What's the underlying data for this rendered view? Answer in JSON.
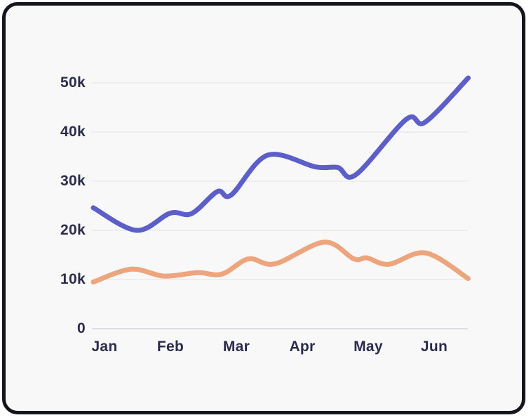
{
  "colors": {
    "card_background": "#f8f8f8",
    "card_border": "#15151d",
    "grid_line": "#e9e9ec",
    "axis_line": "#d6d6da",
    "label_text": "#2b2b4c"
  },
  "chart_data": {
    "type": "line",
    "title": "",
    "grid": true,
    "legend": "none",
    "x_axis": {
      "tick_labels": [
        "Jan",
        "Feb",
        "Mar",
        "Apr",
        "May",
        "Jun"
      ]
    },
    "y_axis": {
      "min": 0,
      "max": 50000,
      "tick_interval": 10000,
      "tick_labels": [
        "0",
        "10k",
        "20k",
        "30k",
        "40k",
        "50k"
      ]
    },
    "series": [
      {
        "id": "indigo",
        "color": "#5c5fc8",
        "stroke_width": 7,
        "x_fractions": [
          0,
          0.115,
          0.205,
          0.262,
          0.331,
          0.368,
          0.465,
          0.593,
          0.652,
          0.7,
          0.835,
          0.885,
          1.0
        ],
        "values": [
          24600,
          20000,
          23500,
          23400,
          27900,
          27200,
          35300,
          32900,
          32800,
          31300,
          42600,
          42000,
          51000
        ]
      },
      {
        "id": "salmon",
        "color": "#eca57d",
        "stroke_width": 7,
        "x_fractions": [
          0,
          0.101,
          0.189,
          0.277,
          0.343,
          0.414,
          0.485,
          0.616,
          0.695,
          0.73,
          0.788,
          0.887,
          1.0
        ],
        "values": [
          9500,
          12100,
          10700,
          11400,
          11100,
          14200,
          13200,
          17600,
          14200,
          14400,
          13100,
          15400,
          10200
        ]
      }
    ]
  }
}
